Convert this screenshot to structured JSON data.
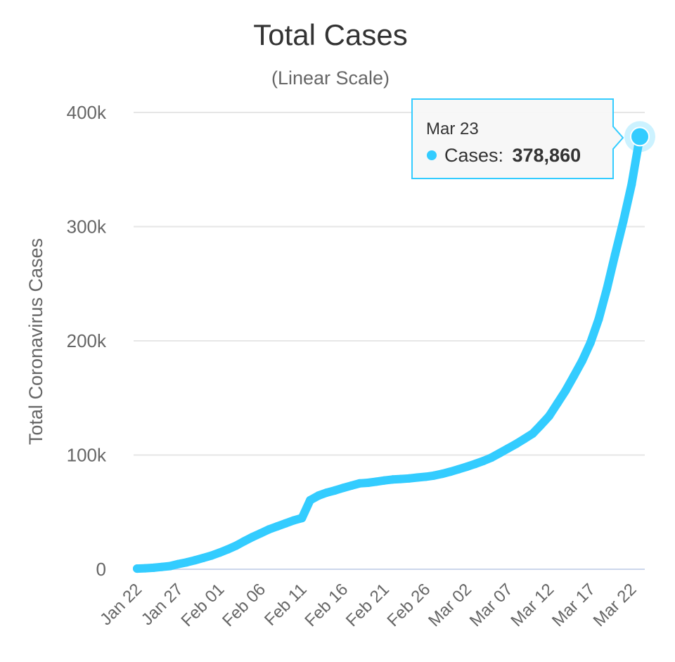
{
  "chart_data": {
    "type": "line",
    "title": "Total Cases",
    "subtitle": "(Linear Scale)",
    "ylabel": "Total Coronavirus Cases",
    "xlabel": "",
    "ylim": [
      0,
      400000
    ],
    "yticks": [
      0,
      100000,
      200000,
      300000,
      400000
    ],
    "ytick_labels": [
      "0",
      "100k",
      "200k",
      "300k",
      "400k"
    ],
    "xtick_labels": [
      "Jan 22",
      "Jan 27",
      "Feb 01",
      "Feb 06",
      "Feb 11",
      "Feb 16",
      "Feb 21",
      "Feb 26",
      "Mar 02",
      "Mar 07",
      "Mar 12",
      "Mar 17",
      "Mar 22"
    ],
    "grid": true,
    "line_color": "#33ccff",
    "series": [
      {
        "name": "Cases",
        "x": [
          "Jan 22",
          "Jan 23",
          "Jan 24",
          "Jan 25",
          "Jan 26",
          "Jan 27",
          "Jan 28",
          "Jan 29",
          "Jan 30",
          "Jan 31",
          "Feb 01",
          "Feb 02",
          "Feb 03",
          "Feb 04",
          "Feb 05",
          "Feb 06",
          "Feb 07",
          "Feb 08",
          "Feb 09",
          "Feb 10",
          "Feb 11",
          "Feb 12",
          "Feb 13",
          "Feb 14",
          "Feb 15",
          "Feb 16",
          "Feb 17",
          "Feb 18",
          "Feb 19",
          "Feb 20",
          "Feb 21",
          "Feb 22",
          "Feb 23",
          "Feb 24",
          "Feb 25",
          "Feb 26",
          "Feb 27",
          "Feb 28",
          "Feb 29",
          "Mar 01",
          "Mar 02",
          "Mar 03",
          "Mar 04",
          "Mar 05",
          "Mar 06",
          "Mar 07",
          "Mar 08",
          "Mar 09",
          "Mar 10",
          "Mar 11",
          "Mar 12",
          "Mar 13",
          "Mar 14",
          "Mar 15",
          "Mar 16",
          "Mar 17",
          "Mar 18",
          "Mar 19",
          "Mar 20",
          "Mar 21",
          "Mar 22",
          "Mar 23"
        ],
        "values": [
          580,
          845,
          1317,
          2015,
          2800,
          4581,
          6058,
          7813,
          9823,
          11950,
          14553,
          17391,
          20630,
          24554,
          28276,
          31481,
          34886,
          37558,
          40159,
          42768,
          44810,
          60500,
          64500,
          67100,
          69000,
          71200,
          73200,
          75200,
          75700,
          76700,
          77700,
          78600,
          79000,
          79500,
          80300,
          81000,
          82000,
          83500,
          85400,
          87500,
          89800,
          92200,
          94800,
          97800,
          101700,
          105800,
          109800,
          114200,
          118800,
          126300,
          134200,
          145300,
          156500,
          169300,
          182500,
          198200,
          218800,
          245500,
          275600,
          305000,
          337000,
          378860
        ]
      }
    ],
    "tooltip": {
      "date": "Mar 23",
      "label": "Cases:",
      "value": "378,860"
    }
  }
}
